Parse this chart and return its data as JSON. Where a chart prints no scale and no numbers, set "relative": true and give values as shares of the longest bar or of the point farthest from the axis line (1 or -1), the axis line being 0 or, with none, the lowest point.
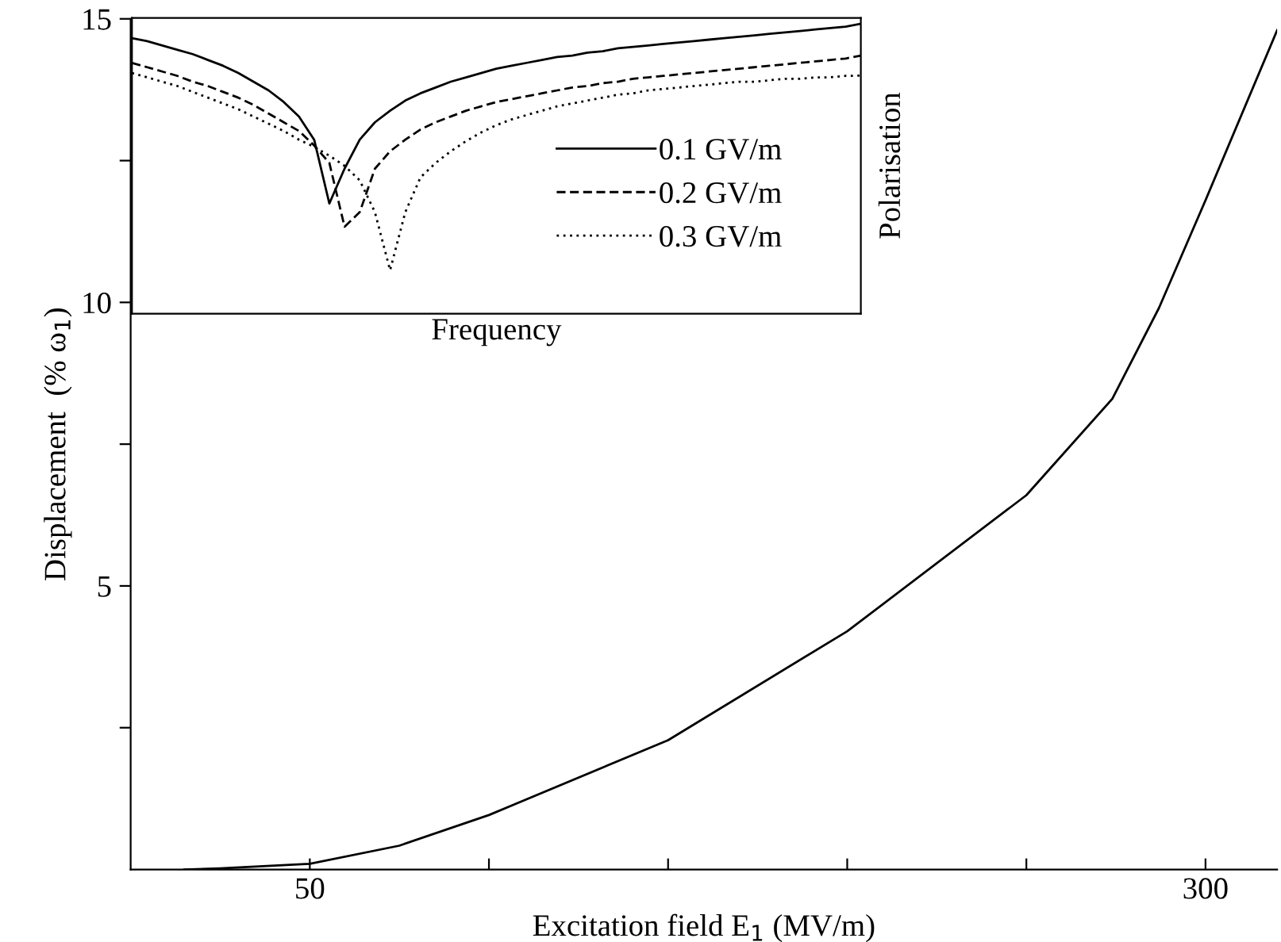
{
  "chart_data": [
    {
      "type": "line",
      "xlabel": "Excitation field E$_{1}$ (MV/m)",
      "ylabel": "Displacement  (% ω$_{1}$)",
      "xlim": [
        0,
        320
      ],
      "xticks": [
        50,
        {
          "value": 100,
          "label": null
        },
        {
          "value": 150,
          "label": null
        },
        {
          "value": 200,
          "label": null
        },
        {
          "value": 250,
          "label": null
        },
        300
      ],
      "ylim": [
        0,
        15
      ],
      "yticks": [
        {
          "value": 2.5,
          "label": null
        },
        5,
        {
          "value": 7.5,
          "label": null
        },
        10,
        {
          "value": 12.5,
          "label": null
        },
        15
      ],
      "series": [
        {
          "color": "#000000",
          "x": [
            15,
            25,
            50,
            75,
            100,
            150,
            200,
            250,
            274,
            287,
            300,
            320
          ],
          "values": [
            0,
            0.02,
            0.1,
            0.42,
            0.96,
            2.28,
            4.2,
            6.6,
            8.3,
            9.9,
            11.8,
            14.8
          ]
        }
      ]
    },
    {
      "type": "line",
      "relative": true,
      "xlabel": "Frequency",
      "ylabel": "Polarisation",
      "legend": "right",
      "categories": [
        null,
        null,
        null,
        null,
        null,
        null,
        null,
        null,
        null,
        null,
        null,
        null,
        null,
        null,
        null,
        null,
        null,
        null,
        null,
        null,
        null,
        null,
        null,
        null,
        null,
        null,
        null,
        null,
        null,
        null,
        null,
        null,
        null,
        null,
        null,
        null,
        null,
        null,
        null,
        null,
        null,
        null,
        null,
        null,
        null,
        null,
        null,
        null,
        null
      ],
      "series": [
        {
          "name": "0.1 GV/m",
          "color": "#000000",
          "line_style": "solid",
          "values": [
            0.95,
            0.94,
            0.925,
            0.91,
            0.895,
            0.875,
            0.855,
            0.83,
            0.8,
            0.77,
            0.73,
            0.68,
            0.6,
            0.38,
            0.5,
            0.6,
            0.66,
            0.7,
            0.735,
            0.76,
            0.78,
            0.8,
            0.815,
            0.83,
            0.845,
            0.855,
            0.865,
            0.875,
            0.885,
            0.89,
            0.9,
            0.905,
            0.915,
            0.92,
            0.925,
            0.93,
            0.935,
            0.94,
            0.945,
            0.95,
            0.955,
            0.96,
            0.965,
            0.97,
            0.975,
            0.98,
            0.985,
            0.99,
            1
          ]
        },
        {
          "name": "0.2 GV/m",
          "color": "#000000",
          "line_style": "dashed",
          "values": [
            0.865,
            0.85,
            0.835,
            0.82,
            0.8,
            0.785,
            0.765,
            0.745,
            0.72,
            0.69,
            0.66,
            0.63,
            0.58,
            0.52,
            0.3,
            0.35,
            0.5,
            0.56,
            0.6,
            0.635,
            0.66,
            0.68,
            0.7,
            0.715,
            0.73,
            0.74,
            0.75,
            0.76,
            0.77,
            0.78,
            0.785,
            0.795,
            0.8,
            0.81,
            0.815,
            0.82,
            0.825,
            0.83,
            0.835,
            0.84,
            0.845,
            0.85,
            0.855,
            0.86,
            0.865,
            0.87,
            0.875,
            0.88,
            0.89
          ]
        },
        {
          "name": "0.3 GV/m",
          "color": "#000000",
          "line_style": "dotted",
          "values": [
            0.83,
            0.815,
            0.8,
            0.785,
            0.765,
            0.745,
            0.725,
            0.705,
            0.68,
            0.655,
            0.63,
            0.6,
            0.575,
            0.545,
            0.51,
            0.46,
            0.35,
            0.15,
            0.35,
            0.47,
            0.52,
            0.56,
            0.595,
            0.625,
            0.65,
            0.67,
            0.685,
            0.7,
            0.715,
            0.725,
            0.735,
            0.745,
            0.755,
            0.76,
            0.77,
            0.775,
            0.78,
            0.785,
            0.79,
            0.795,
            0.8,
            0.8,
            0.805,
            0.81,
            0.81,
            0.815,
            0.815,
            0.82,
            0.821
          ]
        }
      ]
    }
  ]
}
